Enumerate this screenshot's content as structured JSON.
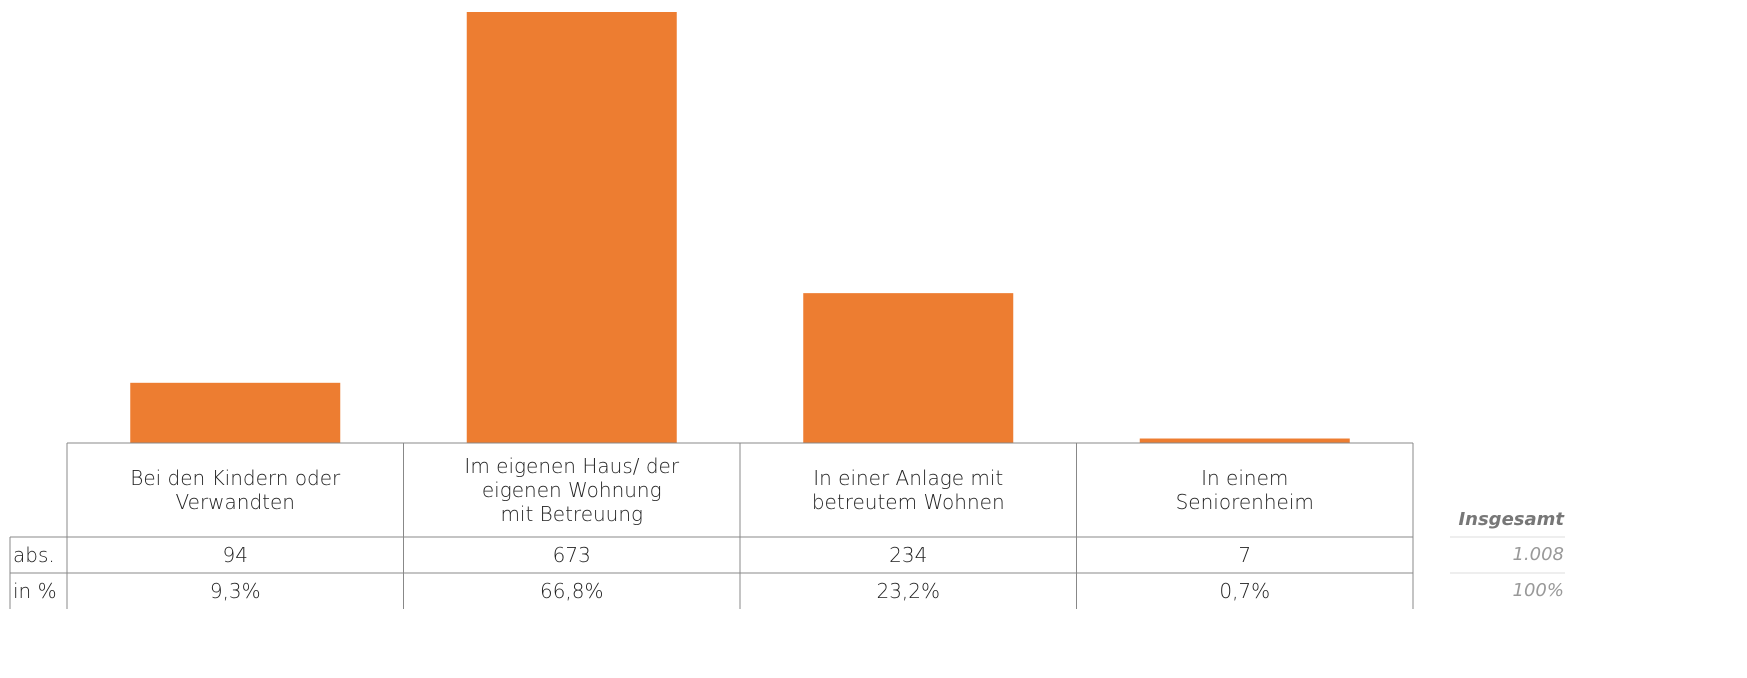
{
  "chart_data": {
    "type": "bar",
    "color": "#ed7d31",
    "categories": [
      "Bei den Kindern oder Verwandten",
      "Im eigenen Haus/ der eigenen Wohnung mit Betreuung",
      "In einer Anlage mit betreutem Wohnen",
      "In einem Seniorenheim"
    ],
    "series": [
      {
        "name": "abs.",
        "values": [
          94,
          673,
          234,
          7
        ]
      },
      {
        "name": "in %",
        "values": [
          9.3,
          66.8,
          23.2,
          0.7
        ],
        "value_labels": [
          "9,3%",
          "66,8%",
          "23,2%",
          "0,7%"
        ]
      }
    ],
    "totals": {
      "label": "Insgesamt",
      "values": [
        1008,
        100
      ],
      "value_labels": [
        "1.008",
        "100%"
      ]
    }
  }
}
